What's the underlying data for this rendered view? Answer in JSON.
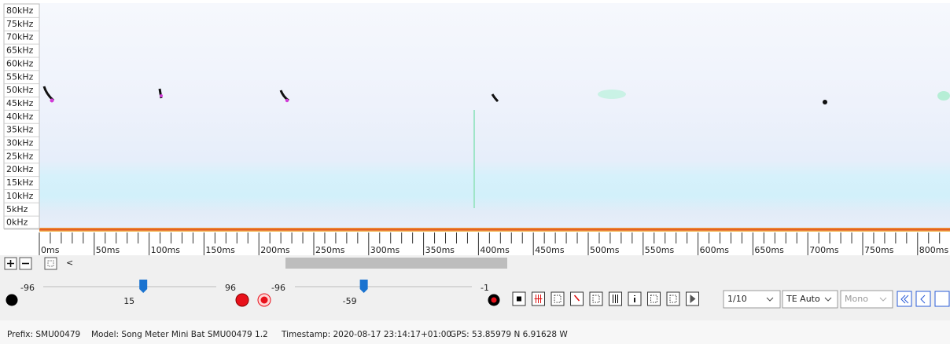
{
  "frequency_axis": {
    "labels": [
      "80kHz",
      "75kHz",
      "70kHz",
      "65kHz",
      "60kHz",
      "55kHz",
      "50kHz",
      "45kHz",
      "40kHz",
      "35kHz",
      "30kHz",
      "25kHz",
      "20kHz",
      "15kHz",
      "10kHz",
      "5kHz",
      "0kHz"
    ]
  },
  "time_axis": {
    "labels": [
      "0ms",
      "50ms",
      "100ms",
      "150ms",
      "200ms",
      "250ms",
      "300ms",
      "350ms",
      "400ms",
      "450ms",
      "500ms",
      "550ms",
      "600ms",
      "650ms",
      "700ms",
      "750ms",
      "800ms"
    ]
  },
  "toolbar": {
    "scroll_left": "<"
  },
  "controls": {
    "slider_1": {
      "min": -96,
      "value": 15,
      "max": 96
    },
    "slider_2": {
      "min": -96,
      "value": -59,
      "max": -1
    },
    "page": "1/10",
    "trigger": "TE Auto",
    "channel": "Mono"
  },
  "status": {
    "prefix": "Prefix: SMU00479",
    "model": "Model: Song Meter Mini Bat SMU00479 1.2",
    "timestamp": "Timestamp: 2020-08-17 23:14:17+01:00",
    "gps": "GPS: 53.85979 N 6.91628 W"
  }
}
